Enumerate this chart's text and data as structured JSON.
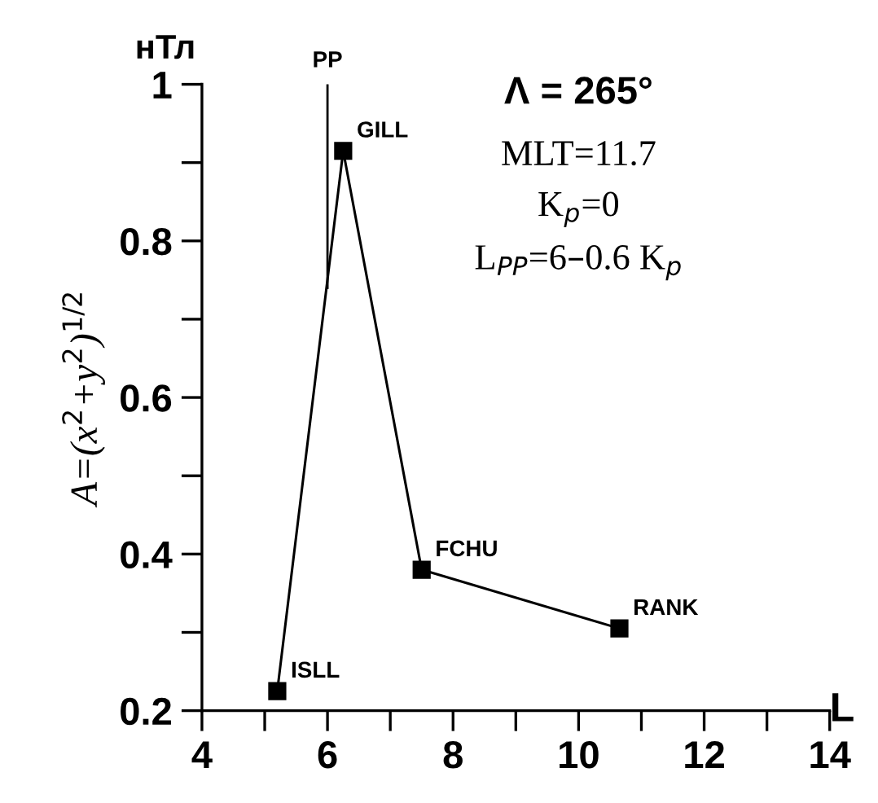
{
  "chart_data": {
    "type": "line",
    "title": "Λ = 265°",
    "xlabel": "L",
    "ylabel": "A=(x$^{2}$+y$^{2}$)$^{1/2}$",
    "x": [
      5.2,
      6.25,
      7.5,
      10.65
    ],
    "series": [
      {
        "color": "#000000",
        "values": [
          0.225,
          0.915,
          0.38,
          0.305
        ]
      }
    ],
    "marker": "square",
    "line_style": "solid",
    "grid": false,
    "legend": false,
    "xlim": [
      4,
      14
    ],
    "xticks": [
      4,
      6,
      8,
      10,
      12,
      14
    ],
    "ylim": [
      0.2,
      1
    ],
    "yticks": [
      0.2,
      0.4,
      0.6,
      0.8,
      1
    ],
    "ref_lines": [
      {
        "axis": "x",
        "value": 6,
        "label": "PP"
      }
    ],
    "annotations": [
      "нТл",
      "MLT=11.7",
      "K$_{p}$=0",
      "L$_{PP}$=6–0.6 K$_{p}$",
      {
        "text": "ISLL",
        "x": 5.2,
        "y": 0.225
      },
      {
        "text": "GILL",
        "x": 6.25,
        "y": 0.915
      },
      {
        "text": "FCHU",
        "x": 7.5,
        "y": 0.38
      },
      {
        "text": "RANK",
        "x": 10.65,
        "y": 0.305
      }
    ]
  }
}
